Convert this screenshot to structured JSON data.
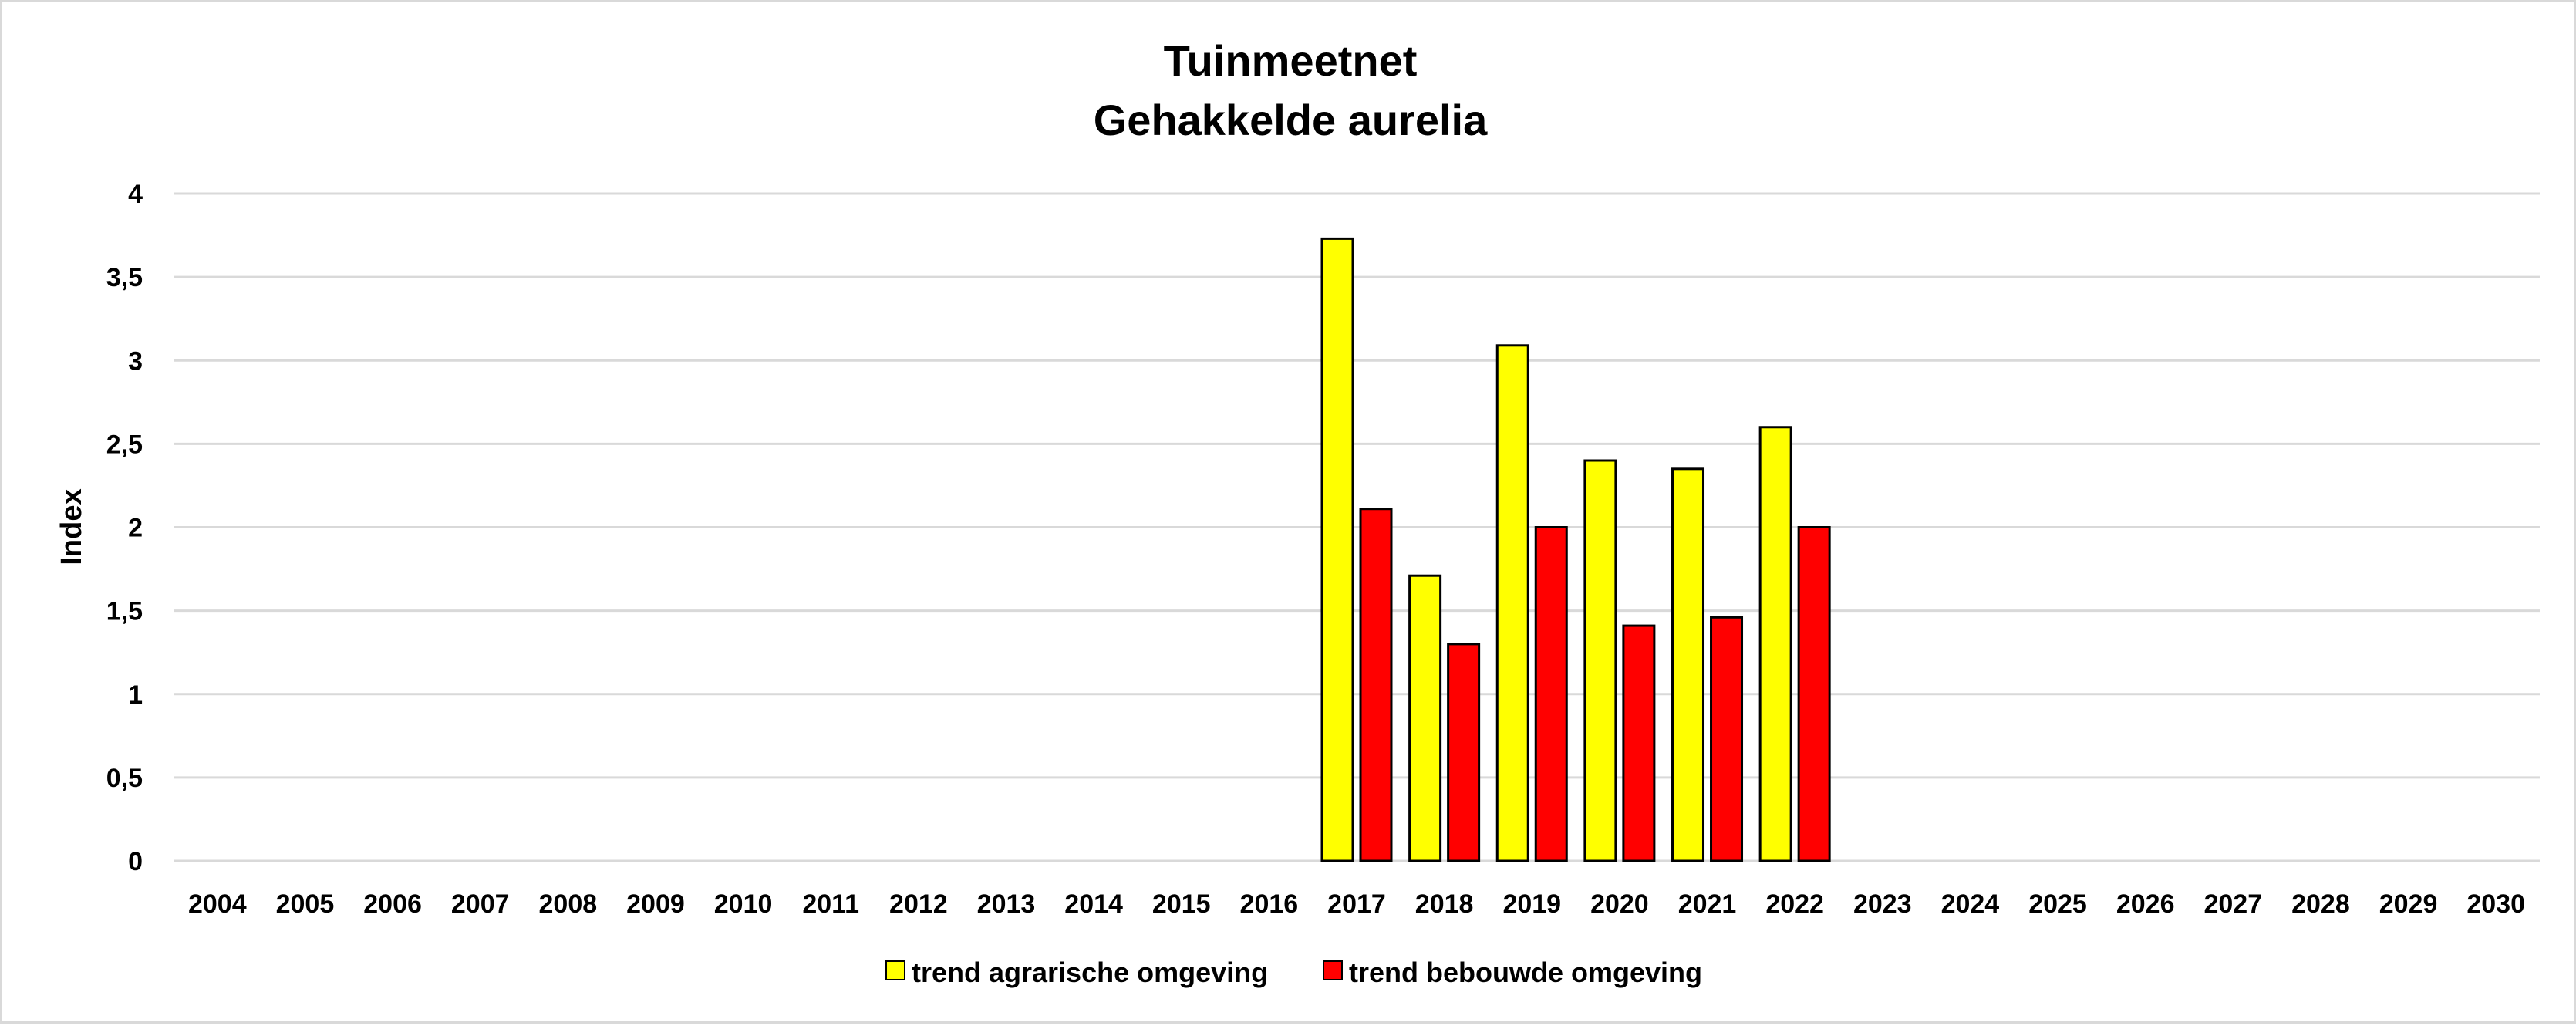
{
  "chart_data": {
    "type": "bar",
    "title": [
      "Tuinmeetnet",
      "Gehakkelde aurelia"
    ],
    "xlabel": "",
    "ylabel": "Index",
    "ylim": [
      0,
      4
    ],
    "yticks": [
      0,
      0.5,
      1,
      1.5,
      2,
      2.5,
      3,
      3.5,
      4
    ],
    "ytick_labels": [
      "0",
      "0,5",
      "1",
      "1,5",
      "2",
      "2,5",
      "3",
      "3,5",
      "4"
    ],
    "grid": true,
    "legend_position": "bottom",
    "categories": [
      "2004",
      "2005",
      "2006",
      "2007",
      "2008",
      "2009",
      "2010",
      "2011",
      "2012",
      "2013",
      "2014",
      "2015",
      "2016",
      "2017",
      "2018",
      "2019",
      "2020",
      "2021",
      "2022",
      "2023",
      "2024",
      "2025",
      "2026",
      "2027",
      "2028",
      "2029",
      "2030"
    ],
    "series": [
      {
        "name": "trend agrarische omgeving",
        "color": "#ffff00",
        "values": [
          null,
          null,
          null,
          null,
          null,
          null,
          null,
          null,
          null,
          null,
          null,
          null,
          null,
          3.73,
          1.71,
          3.09,
          2.4,
          2.35,
          2.6,
          null,
          null,
          null,
          null,
          null,
          null,
          null,
          null
        ]
      },
      {
        "name": "trend bebouwde omgeving",
        "color": "#ff0000",
        "values": [
          null,
          null,
          null,
          null,
          null,
          null,
          null,
          null,
          null,
          null,
          null,
          null,
          null,
          2.11,
          1.3,
          2.0,
          1.41,
          1.46,
          2.0,
          null,
          null,
          null,
          null,
          null,
          null,
          null,
          null
        ]
      }
    ]
  }
}
